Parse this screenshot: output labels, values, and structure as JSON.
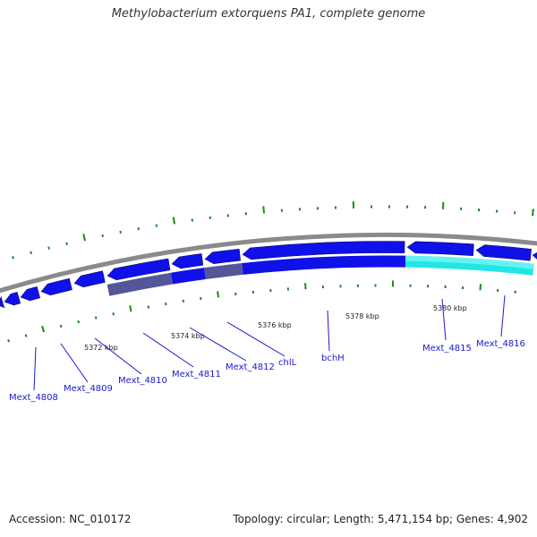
{
  "title": "Methylobacterium extorquens PA1, complete genome",
  "footer": {
    "accession": "Accession: NC_010172",
    "summary": "Topology: circular; Length: 5,471,154 bp; Genes: 4,902"
  },
  "colors": {
    "backbone": "#8a8a8a",
    "gene_blue": "#1010e8",
    "gene_cyan": "#22e6e6",
    "highlight_dark": "#555599",
    "gc_skew": "#1a8a1a",
    "label_blue": "#1a1acc"
  },
  "ticks": [
    {
      "label": "5372 kbp"
    },
    {
      "label": "5374 kbp"
    },
    {
      "label": "5376 kbp"
    },
    {
      "label": "5378 kbp"
    },
    {
      "label": "5380 kbp"
    }
  ],
  "gene_labels": [
    {
      "name": "Mext_4808"
    },
    {
      "name": "Mext_4809"
    },
    {
      "name": "Mext_4810"
    },
    {
      "name": "Mext_4811"
    },
    {
      "name": "Mext_4812"
    },
    {
      "name": "chlL"
    },
    {
      "name": "bchH"
    },
    {
      "name": "Mext_4815"
    },
    {
      "name": "Mext_4816"
    }
  ]
}
